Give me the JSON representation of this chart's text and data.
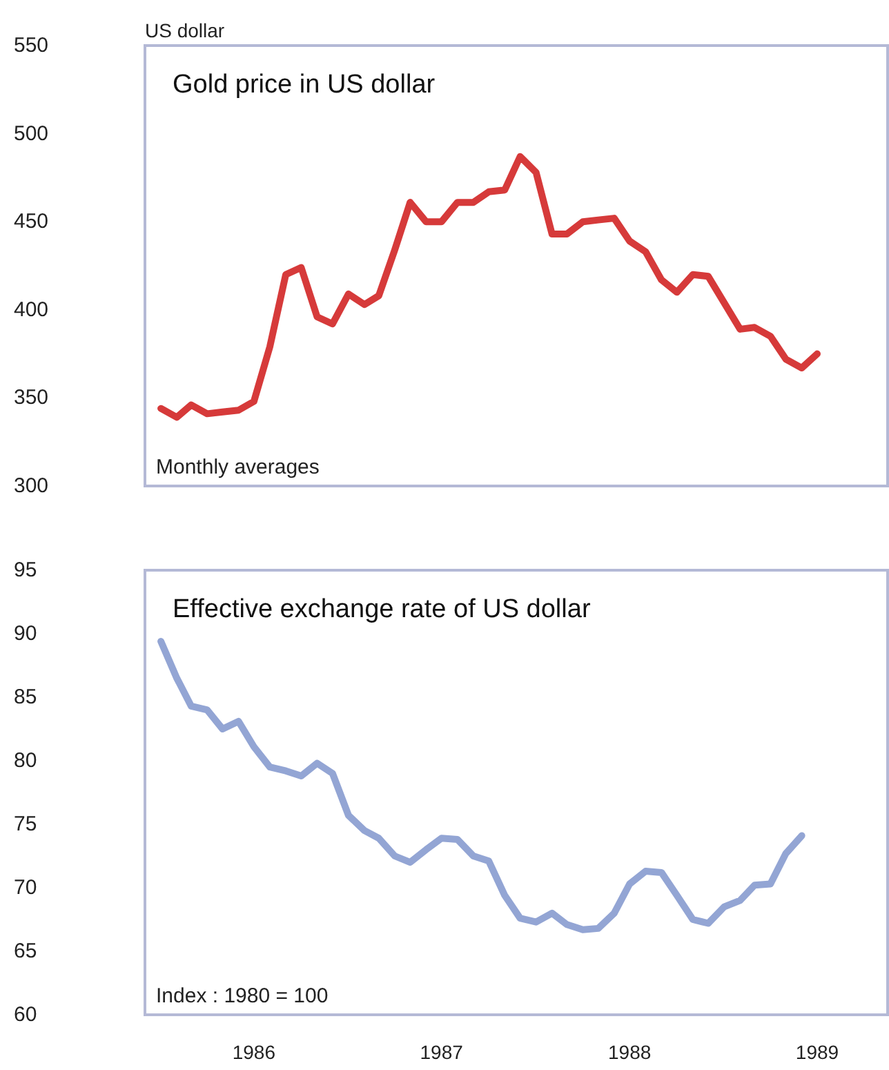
{
  "chart_data": [
    {
      "type": "line",
      "title": "Gold price in US dollar",
      "ylabel": "US dollar",
      "annotations": [
        "Monthly averages"
      ],
      "marker": "none",
      "tick_labels": "y",
      "x": [
        "1986-01",
        "1986-02",
        "1986-03",
        "1986-04",
        "1986-05",
        "1986-06",
        "1986-07",
        "1986-08",
        "1986-09",
        "1986-10",
        "1986-11",
        "1986-12",
        "1987-01",
        "1987-02",
        "1987-03",
        "1987-04",
        "1987-05",
        "1987-06",
        "1987-07",
        "1987-08",
        "1987-09",
        "1987-10",
        "1987-11",
        "1987-12",
        "1988-01",
        "1988-02",
        "1988-03",
        "1988-04",
        "1988-05",
        "1988-06",
        "1988-07",
        "1988-08",
        "1988-09",
        "1988-10",
        "1988-11",
        "1988-12",
        "1989-01",
        "1989-02",
        "1989-03",
        "1989-04",
        "1989-05",
        "1989-06",
        "1989-07"
      ],
      "series": [
        {
          "color": "#d63a3a",
          "values": [
            344,
            339,
            346,
            341,
            342,
            343,
            348,
            379,
            420,
            424,
            396,
            392,
            409,
            403,
            408,
            434,
            461,
            450,
            450,
            461,
            461,
            467,
            468,
            487,
            478,
            443,
            443,
            450,
            451,
            452,
            439,
            433,
            417,
            410,
            420,
            419,
            404,
            389,
            390,
            385,
            372,
            367,
            375
          ]
        }
      ],
      "xlim": [
        "1985-12",
        "1989-11-15"
      ],
      "ylim": [
        300,
        550
      ],
      "yticks": [
        300,
        350,
        400,
        450,
        500,
        550
      ]
    },
    {
      "type": "line",
      "title": "Effective exchange rate of US dollar",
      "annotations": [
        "Index : 1980 = 100"
      ],
      "marker": "none",
      "x": [
        "1986-01",
        "1986-02",
        "1986-03",
        "1986-04",
        "1986-05",
        "1986-06",
        "1986-07",
        "1986-08",
        "1986-09",
        "1986-10",
        "1986-11",
        "1986-12",
        "1987-01",
        "1987-02",
        "1987-03",
        "1987-04",
        "1987-05",
        "1987-06",
        "1987-07",
        "1987-08",
        "1987-09",
        "1987-10",
        "1987-11",
        "1987-12",
        "1988-01",
        "1988-02",
        "1988-03",
        "1988-04",
        "1988-05",
        "1988-06",
        "1988-07",
        "1988-08",
        "1988-09",
        "1988-10",
        "1988-11",
        "1988-12",
        "1989-01",
        "1989-02",
        "1989-03",
        "1989-04",
        "1989-05",
        "1989-06"
      ],
      "series": [
        {
          "color": "#93a5d4",
          "values": [
            89.4,
            86.5,
            84.3,
            84.0,
            82.5,
            83.1,
            81.1,
            79.5,
            79.2,
            78.8,
            79.8,
            79.0,
            75.7,
            74.5,
            73.9,
            72.5,
            72.0,
            73.0,
            73.9,
            73.8,
            72.5,
            72.1,
            69.4,
            67.6,
            67.3,
            68.0,
            67.1,
            66.7,
            66.8,
            68.0,
            70.3,
            71.3,
            71.2,
            69.4,
            67.5,
            67.2,
            68.5,
            69.0,
            70.2,
            70.3,
            72.7,
            74.1
          ]
        }
      ],
      "xlim": [
        "1985-12",
        "1989-11-15"
      ],
      "xticks": [
        {
          "value": "1986-07",
          "label": "1986"
        },
        {
          "value": "1987-07",
          "label": "1987"
        },
        {
          "value": "1988-07",
          "label": "1988"
        },
        {
          "value": "1989-07",
          "label": "1989"
        }
      ],
      "ylim": [
        60,
        95
      ],
      "yticks": [
        60,
        65,
        70,
        75,
        80,
        85,
        90,
        95
      ]
    }
  ]
}
